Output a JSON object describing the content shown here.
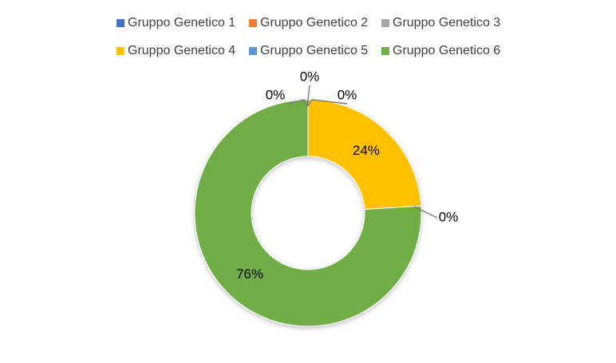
{
  "chart_data": {
    "type": "doughnut",
    "categories": [
      "Gruppo Genetico 1",
      "Gruppo Genetico 2",
      "Gruppo Genetico 3",
      "Gruppo Genetico 4",
      "Gruppo Genetico 5",
      "Gruppo Genetico 6"
    ],
    "values": [
      0,
      0,
      0,
      24,
      0,
      76
    ],
    "value_labels": [
      "0%",
      "0%",
      "0%",
      "24%",
      "0%",
      "76%"
    ],
    "colors": [
      "#4472c4",
      "#ed7d31",
      "#a5a5a5",
      "#ffc000",
      "#5b9bd5",
      "#70ad47"
    ],
    "legend": "top"
  }
}
